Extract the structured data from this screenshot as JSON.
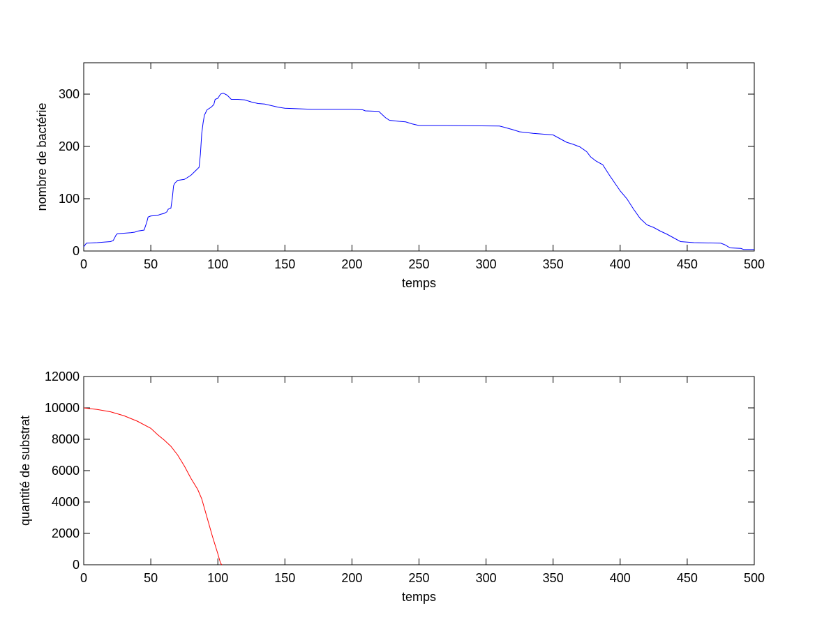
{
  "chart_data": [
    {
      "type": "line",
      "xlabel": "temps",
      "ylabel": "nombre de bactérie",
      "color": "#0000ff",
      "xlim": [
        0,
        500
      ],
      "xticks": [
        0,
        50,
        100,
        150,
        200,
        250,
        300,
        350,
        400,
        450,
        500
      ],
      "ylim": [
        0,
        360
      ],
      "yticks": [
        0,
        100,
        200,
        300
      ],
      "x": [
        0,
        2,
        10,
        15,
        20,
        22,
        24,
        25,
        30,
        35,
        38,
        40,
        45,
        47,
        48,
        50,
        55,
        57,
        60,
        62,
        63,
        65,
        66,
        67,
        68,
        70,
        75,
        77,
        80,
        82,
        84,
        86,
        87,
        88,
        89,
        90,
        92,
        95,
        97,
        98,
        100,
        102,
        104,
        107,
        110,
        115,
        120,
        125,
        130,
        135,
        140,
        145,
        150,
        160,
        170,
        200,
        208,
        210,
        220,
        225,
        228,
        235,
        240,
        245,
        250,
        270,
        310,
        313,
        320,
        325,
        335,
        340,
        350,
        355,
        360,
        365,
        370,
        375,
        378,
        382,
        387,
        392,
        396,
        400,
        405,
        410,
        415,
        420,
        425,
        430,
        435,
        440,
        445,
        450,
        455,
        475,
        478,
        482,
        490,
        492,
        500
      ],
      "values": [
        8,
        15,
        16,
        17,
        18,
        20,
        30,
        33,
        34,
        35,
        36,
        38,
        40,
        55,
        65,
        67,
        68,
        70,
        72,
        75,
        80,
        82,
        100,
        125,
        130,
        135,
        137,
        140,
        145,
        150,
        155,
        160,
        185,
        225,
        245,
        260,
        270,
        275,
        280,
        290,
        292,
        300,
        302,
        298,
        290,
        290,
        289,
        285,
        282,
        281,
        278,
        275,
        273,
        272,
        271,
        271,
        270,
        268,
        267,
        255,
        250,
        248,
        247,
        243,
        240,
        240,
        239,
        237,
        232,
        228,
        225,
        224,
        222,
        215,
        208,
        204,
        199,
        190,
        180,
        172,
        165,
        145,
        130,
        115,
        100,
        80,
        62,
        50,
        45,
        38,
        32,
        25,
        18,
        17,
        16,
        15,
        12,
        6,
        5,
        3,
        3
      ]
    },
    {
      "type": "line",
      "xlabel": "temps",
      "ylabel": "quantité de substrat",
      "color": "#ff0000",
      "xlim": [
        0,
        500
      ],
      "xticks": [
        0,
        50,
        100,
        150,
        200,
        250,
        300,
        350,
        400,
        450,
        500
      ],
      "ylim": [
        0,
        12000
      ],
      "yticks": [
        0,
        2000,
        4000,
        6000,
        8000,
        10000,
        12000
      ],
      "x": [
        0,
        10,
        20,
        30,
        40,
        50,
        55,
        60,
        65,
        70,
        75,
        80,
        85,
        88,
        92,
        96,
        100,
        102,
        103
      ],
      "values": [
        10000,
        9900,
        9750,
        9500,
        9150,
        8700,
        8300,
        7950,
        7550,
        7000,
        6300,
        5500,
        4800,
        4200,
        3000,
        1800,
        700,
        100,
        0
      ]
    }
  ]
}
